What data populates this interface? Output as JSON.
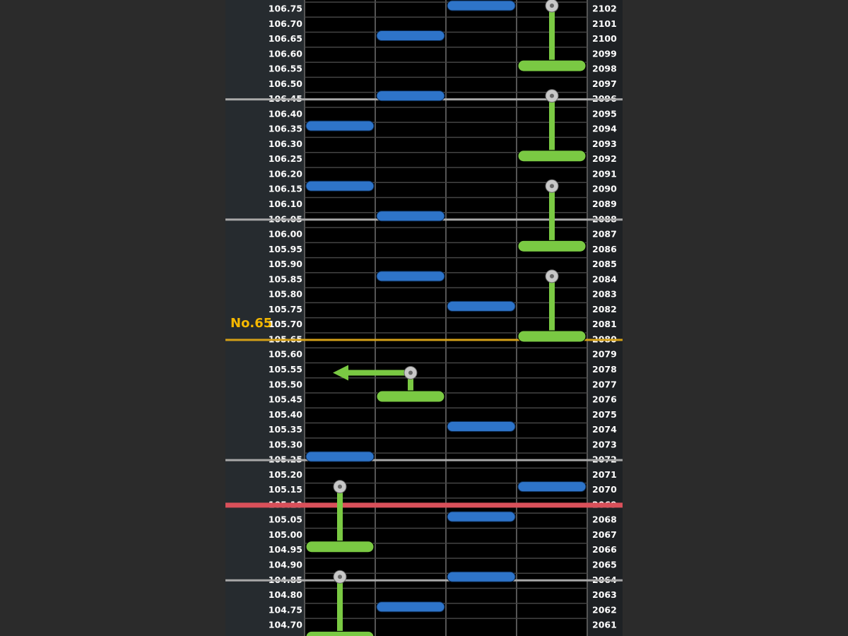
{
  "left_labels": [
    "106.75",
    "106.70",
    "106.65",
    "106.60",
    "106.55",
    "106.50",
    "106.45",
    "106.40",
    "106.35",
    "106.30",
    "106.25",
    "106.20",
    "106.15",
    "106.10",
    "106.05",
    "106.00",
    "105.95",
    "105.90",
    "105.85",
    "105.80",
    "105.75",
    "105.70",
    "105.65",
    "105.60",
    "105.55",
    "105.50",
    "105.45",
    "105.40",
    "105.35",
    "105.30",
    "105.25",
    "105.20",
    "105.15",
    "105.10",
    "105.05",
    "105.00",
    "104.95",
    "104.90",
    "104.85",
    "104.80",
    "104.75",
    "104.70"
  ],
  "right_labels": [
    "2102",
    "2101",
    "2100",
    "2099",
    "2098",
    "2097",
    "2096",
    "2095",
    "2094",
    "2093",
    "2092",
    "2091",
    "2090",
    "2089",
    "2088",
    "2087",
    "2086",
    "2085",
    "2084",
    "2083",
    "2082",
    "2081",
    "2080",
    "2079",
    "2078",
    "2077",
    "2076",
    "2075",
    "2074",
    "2073",
    "2072",
    "2071",
    "2070",
    "2069",
    "2068",
    "2067",
    "2066",
    "2065",
    "2064",
    "2063",
    "2062",
    "2061"
  ],
  "marker": {
    "label": "No.65",
    "at": 2080
  },
  "current_line": 2069,
  "notes": [
    {
      "type": "tap",
      "lane": 2,
      "at": 2102
    },
    {
      "type": "hold",
      "lane": 3,
      "start": 2102,
      "end": 2098
    },
    {
      "type": "tap",
      "lane": 1,
      "at": 2100
    },
    {
      "type": "tap",
      "lane": 1,
      "at": 2096
    },
    {
      "type": "hold",
      "lane": 3,
      "start": 2096,
      "end": 2092
    },
    {
      "type": "tap",
      "lane": 0,
      "at": 2094
    },
    {
      "type": "tap",
      "lane": 0,
      "at": 2090
    },
    {
      "type": "hold",
      "lane": 3,
      "start": 2090,
      "end": 2086
    },
    {
      "type": "tap",
      "lane": 1,
      "at": 2088
    },
    {
      "type": "tap",
      "lane": 1,
      "at": 2084
    },
    {
      "type": "hold",
      "lane": 3,
      "start": 2084,
      "end": 2080
    },
    {
      "type": "tap",
      "lane": 2,
      "at": 2082
    },
    {
      "type": "slide",
      "lane": 1,
      "start": 2078,
      "end": 2076,
      "to_lane": 0
    },
    {
      "type": "tap",
      "lane": 2,
      "at": 2074
    },
    {
      "type": "tap",
      "lane": 0,
      "at": 2072
    },
    {
      "type": "tap",
      "lane": 3,
      "at": 2070
    },
    {
      "type": "hold",
      "lane": 0,
      "start": 2070,
      "end": 2066
    },
    {
      "type": "tap",
      "lane": 2,
      "at": 2068
    },
    {
      "type": "tap",
      "lane": 2,
      "at": 2064
    },
    {
      "type": "hold",
      "lane": 0,
      "start": 2064,
      "end": 2060
    },
    {
      "type": "tap",
      "lane": 1,
      "at": 2062
    }
  ]
}
